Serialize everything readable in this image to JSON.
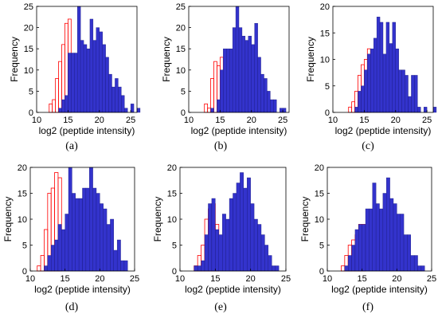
{
  "figure": {
    "background": "#ffffff",
    "colors": {
      "filled": "#3333cc",
      "outline": "#ff0000"
    },
    "panels": [
      {
        "label": "(a)",
        "xlabel": "log2 (peptide intensity)",
        "ylabel": "Frequency"
      },
      {
        "label": "(b)",
        "xlabel": "log2 (peptide intensity)",
        "ylabel": "Frequency"
      },
      {
        "label": "(c)",
        "xlabel": "log2 (peptide intensity)",
        "ylabel": "Frequency"
      },
      {
        "label": "(d)",
        "xlabel": "log2 (peptide intensity)",
        "ylabel": "Frequency"
      },
      {
        "label": "(e)",
        "xlabel": "log2 (peptide intensity)",
        "ylabel": "Frequency"
      },
      {
        "label": "(f)",
        "xlabel": "log2 (peptide intensity)",
        "ylabel": "Frequency"
      }
    ]
  },
  "chart_data": [
    {
      "type": "bar",
      "panel": "(a)",
      "xlabel": "log2 (peptide intensity)",
      "ylabel": "Frequency",
      "xlim": [
        10,
        26
      ],
      "ylim": [
        0,
        25
      ],
      "xticks": [
        10,
        15,
        20,
        25
      ],
      "yticks": [
        0,
        5,
        10,
        15,
        20,
        25
      ],
      "bin_width": 0.5,
      "series": [
        {
          "style": "outline",
          "color": "#ff0000",
          "bins": [
            [
              12,
              0.5,
              2
            ],
            [
              12.5,
              0.5,
              3
            ],
            [
              13,
              0.5,
              8
            ],
            [
              13.5,
              0.5,
              12
            ],
            [
              14,
              0.5,
              16
            ],
            [
              14.5,
              0.5,
              21
            ],
            [
              15,
              0.5,
              22
            ]
          ]
        },
        {
          "style": "filled",
          "color": "#3333cc",
          "bins": [
            [
              13.5,
              0.5,
              1
            ],
            [
              14,
              0.5,
              3
            ],
            [
              14.5,
              0.5,
              4
            ],
            [
              15,
              0.5,
              14
            ],
            [
              15.5,
              0.5,
              14
            ],
            [
              16,
              0.5,
              14
            ],
            [
              16.5,
              0.5,
              25
            ],
            [
              17,
              0.5,
              17
            ],
            [
              17.5,
              0.5,
              16
            ],
            [
              18,
              0.5,
              15
            ],
            [
              18.5,
              0.5,
              22
            ],
            [
              19,
              0.5,
              17
            ],
            [
              19.5,
              0.5,
              20
            ],
            [
              20,
              0.5,
              19
            ],
            [
              20.5,
              0.5,
              16
            ],
            [
              21,
              0.5,
              13
            ],
            [
              21.5,
              0.5,
              9
            ],
            [
              22,
              0.5,
              6
            ],
            [
              22.5,
              0.5,
              8
            ],
            [
              23,
              0.5,
              6
            ],
            [
              23.5,
              0.5,
              4
            ],
            [
              24,
              0.5,
              1
            ],
            [
              25,
              0.5,
              2
            ],
            [
              26,
              0.5,
              1
            ]
          ]
        }
      ]
    },
    {
      "type": "bar",
      "panel": "(b)",
      "xlabel": "log2 (peptide intensity)",
      "ylabel": "Frequency",
      "xlim": [
        10,
        26
      ],
      "ylim": [
        0,
        25
      ],
      "xticks": [
        10,
        15,
        20,
        25
      ],
      "yticks": [
        0,
        5,
        10,
        15,
        20,
        25
      ],
      "bin_width": 0.5,
      "series": [
        {
          "style": "outline",
          "color": "#ff0000",
          "bins": [
            [
              12.5,
              0.5,
              2
            ],
            [
              13,
              0.5,
              1
            ],
            [
              13.5,
              0.5,
              8
            ],
            [
              14,
              0.5,
              12
            ],
            [
              14.5,
              0.5,
              11
            ],
            [
              15,
              0.5,
              13
            ]
          ]
        },
        {
          "style": "filled",
          "color": "#3333cc",
          "bins": [
            [
              13.5,
              0.5,
              1
            ],
            [
              14.5,
              0.5,
              3
            ],
            [
              15,
              0.5,
              10
            ],
            [
              15.5,
              0.5,
              15
            ],
            [
              16,
              0.5,
              15
            ],
            [
              16.5,
              0.5,
              15
            ],
            [
              17,
              0.5,
              20
            ],
            [
              17.5,
              0.5,
              25
            ],
            [
              18,
              0.5,
              20
            ],
            [
              18.5,
              0.5,
              18
            ],
            [
              19,
              0.5,
              17
            ],
            [
              19.5,
              0.5,
              18
            ],
            [
              20,
              0.5,
              16
            ],
            [
              20.5,
              0.5,
              21
            ],
            [
              21,
              0.5,
              13
            ],
            [
              21.5,
              0.5,
              9
            ],
            [
              22,
              0.5,
              8
            ],
            [
              22.5,
              0.5,
              5
            ],
            [
              23,
              0.5,
              3
            ],
            [
              23.5,
              0.5,
              3
            ],
            [
              24.5,
              0.5,
              1
            ],
            [
              25,
              0.5,
              1
            ]
          ]
        }
      ]
    },
    {
      "type": "bar",
      "panel": "(c)",
      "xlabel": "log2 (peptide intensity)",
      "ylabel": "Frequency",
      "xlim": [
        10,
        26
      ],
      "ylim": [
        0,
        20
      ],
      "xticks": [
        10,
        15,
        20,
        25
      ],
      "yticks": [
        0,
        5,
        10,
        15,
        20
      ],
      "bin_width": 0.5,
      "series": [
        {
          "style": "outline",
          "color": "#ff0000",
          "bins": [
            [
              12.5,
              0.5,
              1
            ],
            [
              13,
              0.5,
              2
            ],
            [
              13.5,
              0.5,
              4
            ],
            [
              14,
              0.5,
              7
            ],
            [
              14.5,
              0.5,
              9
            ],
            [
              15,
              0.5,
              10
            ],
            [
              15.5,
              0.5,
              12
            ]
          ]
        },
        {
          "style": "filled",
          "color": "#3333cc",
          "bins": [
            [
              13.5,
              0.5,
              1
            ],
            [
              14,
              0.5,
              4
            ],
            [
              14.5,
              0.5,
              5
            ],
            [
              15,
              0.5,
              8
            ],
            [
              15.5,
              0.5,
              11
            ],
            [
              16,
              0.5,
              12
            ],
            [
              16.5,
              0.5,
              14
            ],
            [
              17,
              0.5,
              18
            ],
            [
              17.5,
              0.5,
              17
            ],
            [
              18,
              0.5,
              11
            ],
            [
              18.5,
              0.5,
              17
            ],
            [
              19,
              0.5,
              13
            ],
            [
              19.5,
              0.5,
              17
            ],
            [
              20,
              0.5,
              12
            ],
            [
              20.5,
              0.5,
              8
            ],
            [
              21,
              0.5,
              8
            ],
            [
              21.5,
              0.5,
              7
            ],
            [
              22,
              0.5,
              3
            ],
            [
              22.5,
              0.5,
              7
            ],
            [
              23,
              0.5,
              7
            ],
            [
              23.5,
              0.5,
              1
            ],
            [
              24.5,
              0.5,
              1
            ],
            [
              26,
              0.5,
              1
            ]
          ]
        }
      ]
    },
    {
      "type": "bar",
      "panel": "(d)",
      "xlabel": "log2 (peptide intensity)",
      "ylabel": "Frequency",
      "xlim": [
        10,
        25
      ],
      "ylim": [
        0,
        20
      ],
      "xticks": [
        10,
        15,
        20,
        25
      ],
      "yticks": [
        0,
        5,
        10,
        15,
        20
      ],
      "bin_width": 0.5,
      "series": [
        {
          "style": "outline",
          "color": "#ff0000",
          "bins": [
            [
              11,
              0.5,
              1
            ],
            [
              11.5,
              0.5,
              3
            ],
            [
              12,
              0.5,
              8
            ],
            [
              12.5,
              0.5,
              15
            ],
            [
              13,
              0.5,
              16
            ],
            [
              13.5,
              0.5,
              19
            ],
            [
              14,
              0.5,
              18
            ]
          ]
        },
        {
          "style": "filled",
          "color": "#3333cc",
          "bins": [
            [
              12,
              0.5,
              1
            ],
            [
              12.5,
              0.5,
              3
            ],
            [
              13,
              0.5,
              5
            ],
            [
              13.5,
              0.5,
              6
            ],
            [
              14,
              0.5,
              9
            ],
            [
              14.5,
              0.5,
              8
            ],
            [
              15,
              0.5,
              11
            ],
            [
              15.5,
              0.5,
              20
            ],
            [
              16,
              0.5,
              15
            ],
            [
              16.5,
              0.5,
              14
            ],
            [
              17,
              0.5,
              14
            ],
            [
              17.5,
              0.5,
              16
            ],
            [
              18,
              0.5,
              16
            ],
            [
              18.5,
              0.5,
              20
            ],
            [
              19,
              0.5,
              16
            ],
            [
              19.5,
              0.5,
              15
            ],
            [
              20,
              0.5,
              13
            ],
            [
              20.5,
              0.5,
              12
            ],
            [
              21,
              0.5,
              9
            ],
            [
              21.5,
              0.5,
              10
            ],
            [
              22,
              0.5,
              4
            ],
            [
              22.5,
              0.5,
              6
            ],
            [
              23,
              0.5,
              2
            ],
            [
              23.5,
              0.5,
              2
            ]
          ]
        }
      ]
    },
    {
      "type": "bar",
      "panel": "(e)",
      "xlabel": "log2 (peptide intensity)",
      "ylabel": "Frequency",
      "xlim": [
        10,
        25
      ],
      "ylim": [
        0,
        20
      ],
      "xticks": [
        10,
        15,
        20,
        25
      ],
      "yticks": [
        0,
        5,
        10,
        15,
        20
      ],
      "bin_width": 0.5,
      "series": [
        {
          "style": "outline",
          "color": "#ff0000",
          "bins": [
            [
              12,
              0.5,
              1
            ],
            [
              12.5,
              0.5,
              3
            ],
            [
              13,
              0.5,
              5
            ],
            [
              13.5,
              0.5,
              10
            ],
            [
              14,
              0.5,
              12
            ],
            [
              14.5,
              0.5,
              13
            ],
            [
              15,
              0.5,
              9
            ]
          ]
        },
        {
          "style": "filled",
          "color": "#3333cc",
          "bins": [
            [
              12,
              0.5,
              1
            ],
            [
              12.5,
              0.5,
              1
            ],
            [
              13,
              0.5,
              2
            ],
            [
              13.5,
              0.5,
              7
            ],
            [
              14,
              0.5,
              13
            ],
            [
              14.5,
              0.5,
              14
            ],
            [
              15,
              0.5,
              8
            ],
            [
              15.5,
              0.5,
              7
            ],
            [
              16,
              0.5,
              11
            ],
            [
              16.5,
              0.5,
              10
            ],
            [
              17,
              0.5,
              14
            ],
            [
              17.5,
              0.5,
              15
            ],
            [
              18,
              0.5,
              17
            ],
            [
              18.5,
              0.5,
              19
            ],
            [
              19,
              0.5,
              16
            ],
            [
              19.5,
              0.5,
              18
            ],
            [
              20,
              0.5,
              13
            ],
            [
              20.5,
              0.5,
              10
            ],
            [
              21,
              0.5,
              9
            ],
            [
              21.5,
              0.5,
              7
            ],
            [
              22,
              0.5,
              5
            ],
            [
              22.5,
              0.5,
              3
            ],
            [
              23,
              0.5,
              1
            ],
            [
              23.5,
              0.5,
              1
            ]
          ]
        }
      ]
    },
    {
      "type": "bar",
      "panel": "(f)",
      "xlabel": "log2 (peptide intensity)",
      "ylabel": "Frequency",
      "xlim": [
        10,
        25
      ],
      "ylim": [
        0,
        20
      ],
      "xticks": [
        10,
        15,
        20,
        25
      ],
      "yticks": [
        0,
        5,
        10,
        15,
        20
      ],
      "bin_width": 0.5,
      "series": [
        {
          "style": "outline",
          "color": "#ff0000",
          "bins": [
            [
              12,
              0.5,
              1
            ],
            [
              12.5,
              0.5,
              3
            ],
            [
              13,
              0.5,
              5
            ],
            [
              13.5,
              0.5,
              6
            ],
            [
              14,
              0.5,
              7
            ],
            [
              14.5,
              0.5,
              9
            ],
            [
              15,
              0.5,
              9
            ]
          ]
        },
        {
          "style": "filled",
          "color": "#3333cc",
          "bins": [
            [
              12.5,
              0.5,
              1
            ],
            [
              13,
              0.5,
              3
            ],
            [
              13.5,
              0.5,
              5
            ],
            [
              14,
              0.5,
              8
            ],
            [
              14.5,
              0.5,
              9
            ],
            [
              15,
              0.5,
              9
            ],
            [
              15.5,
              0.5,
              12
            ],
            [
              16,
              0.5,
              12
            ],
            [
              16.5,
              0.5,
              17
            ],
            [
              17,
              0.5,
              13
            ],
            [
              17.5,
              0.5,
              12
            ],
            [
              18,
              0.5,
              15
            ],
            [
              18.5,
              0.5,
              18
            ],
            [
              19,
              0.5,
              14
            ],
            [
              19.5,
              0.5,
              13
            ],
            [
              20,
              0.5,
              11
            ],
            [
              20.5,
              0.5,
              11
            ],
            [
              21,
              0.5,
              7
            ],
            [
              21.5,
              0.5,
              7
            ],
            [
              22,
              0.5,
              3
            ],
            [
              22.5,
              0.5,
              3
            ],
            [
              23,
              0.5,
              1
            ],
            [
              23.5,
              0.5,
              1
            ]
          ]
        }
      ]
    }
  ]
}
